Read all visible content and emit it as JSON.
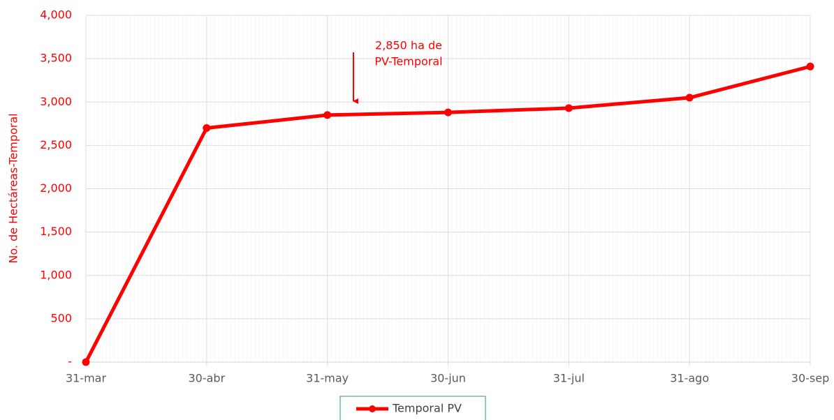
{
  "chart_data": {
    "type": "line",
    "y_label": "No. de Hectáreas-Temporal",
    "categories": [
      "31-mar",
      "30-abr",
      "31-may",
      "30-jun",
      "31-jul",
      "31-ago",
      "30-sep"
    ],
    "series": [
      {
        "name": "Temporal PV",
        "color": "#ff0000",
        "values": [
          0,
          2700,
          2850,
          2880,
          2930,
          3050,
          3410
        ]
      }
    ],
    "ylim": [
      0,
      4000
    ],
    "yticks": [
      {
        "value": 0,
        "label": "-"
      },
      500,
      {
        "value": 1000,
        "label": "1,000"
      },
      {
        "value": 1500,
        "label": "1,500"
      },
      {
        "value": 2000,
        "label": "2,000"
      },
      {
        "value": 2500,
        "label": "2,500"
      },
      {
        "value": 3000,
        "label": "3,000"
      },
      {
        "value": 3500,
        "label": "3,500"
      },
      {
        "value": 4000,
        "label": "4,000"
      }
    ],
    "grid": true,
    "annotation": [
      "2,850 ha de",
      "PV-Temporal"
    ]
  }
}
